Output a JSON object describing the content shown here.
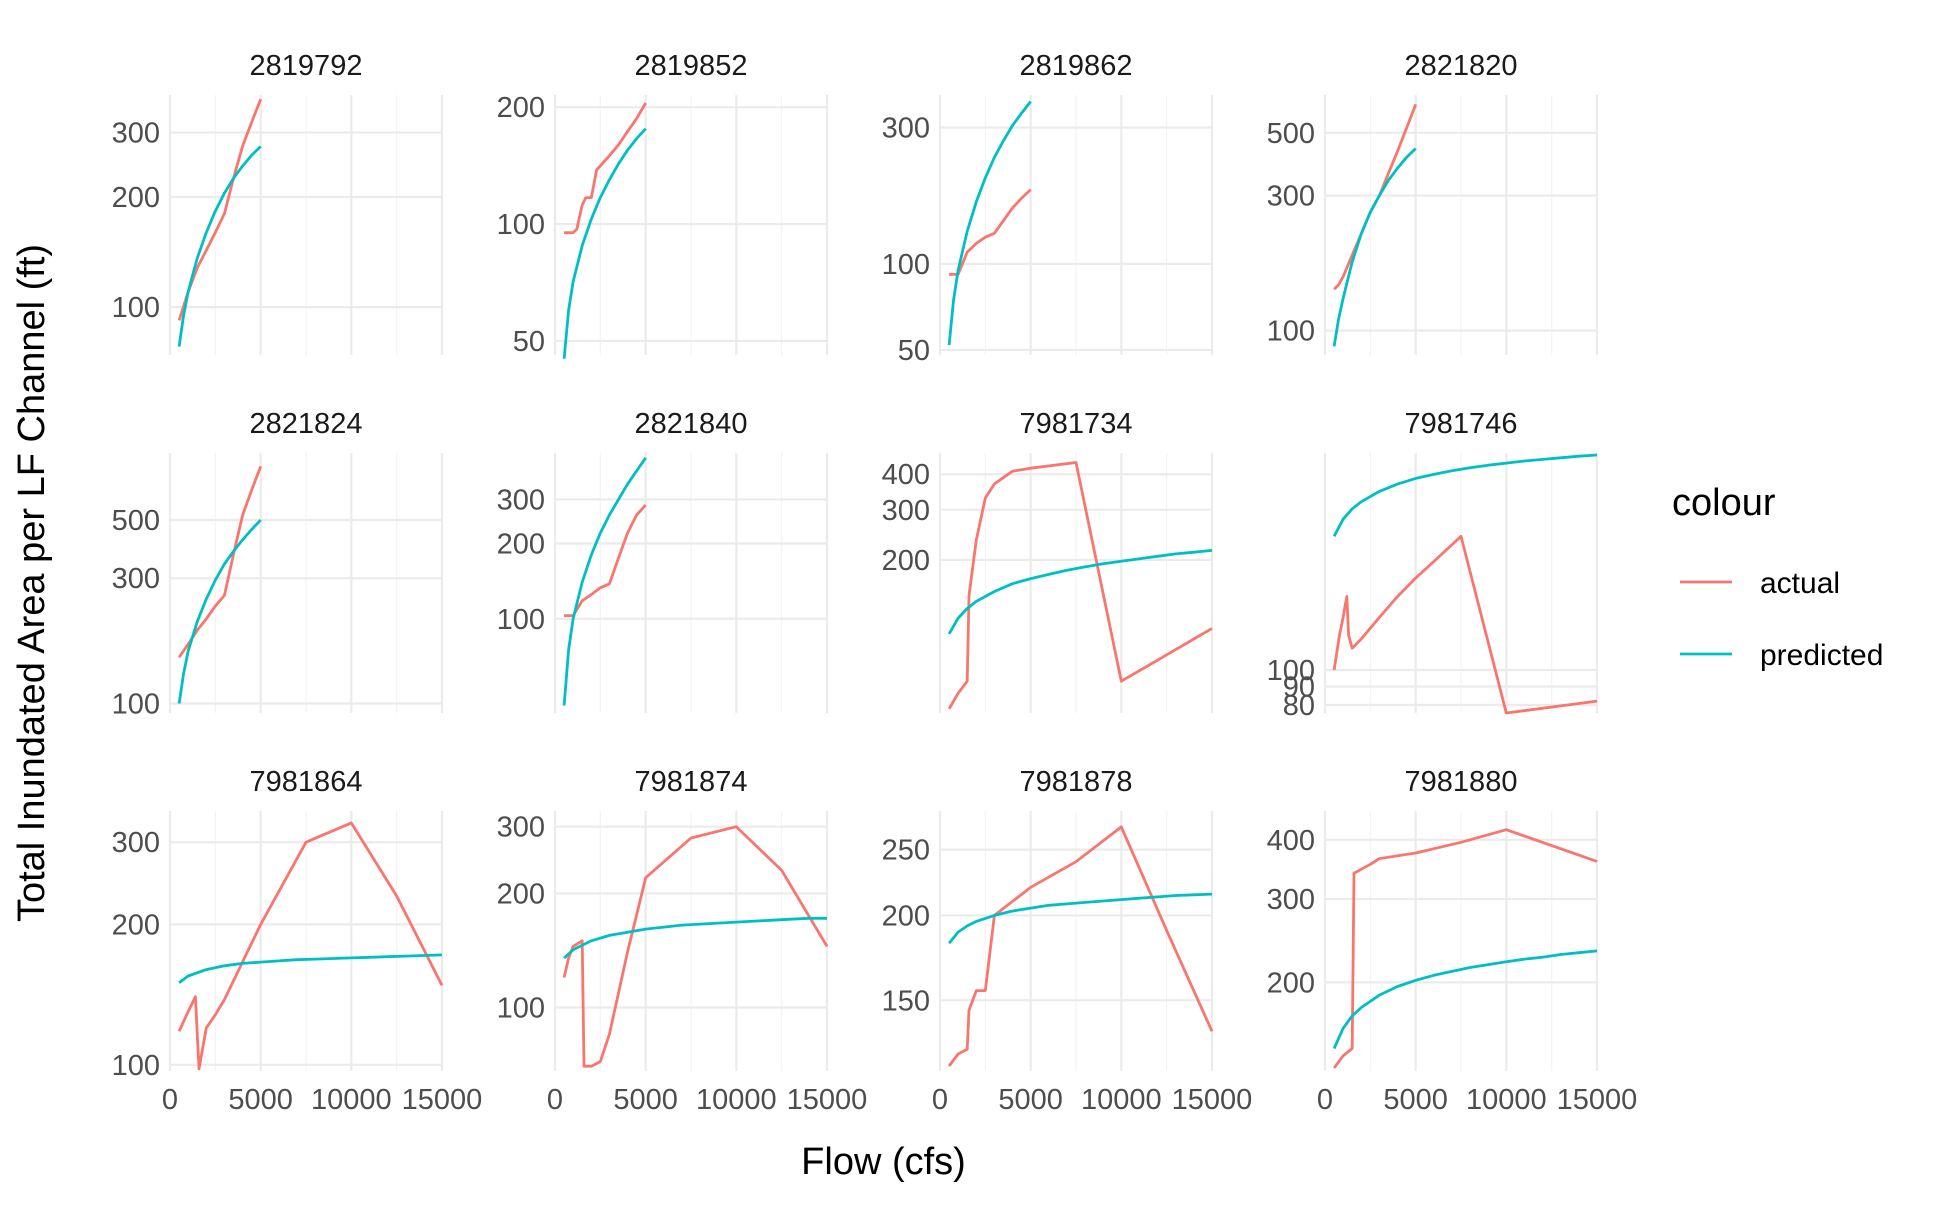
{
  "chart_data": {
    "type": "line",
    "xlabel": "Flow (cfs)",
    "ylabel": "Total Inundated Area per LF Channel (ft)",
    "x_scale": "linear",
    "y_scale": "log",
    "xlim": [
      0,
      15000
    ],
    "x_ticks": [
      0,
      5000,
      10000,
      15000
    ],
    "x_tick_labels": [
      "0",
      "5000",
      "10000",
      "15000"
    ],
    "grid": true,
    "legend": {
      "title": "colour",
      "placement": "right",
      "entries": [
        {
          "label": "actual",
          "color": "#F8766D"
        },
        {
          "label": "predicted",
          "color": "#00BFC4"
        }
      ]
    },
    "panels": [
      {
        "title": "2819792",
        "ylim": [
          74,
          380
        ],
        "y_ticks": [
          100,
          200,
          300
        ],
        "y_tick_labels": [
          "100",
          "200",
          "300"
        ],
        "series": [
          {
            "name": "actual",
            "color": "#F8766D",
            "x": [
              500,
              1000,
              1500,
              2000,
              2500,
              3000,
              3500,
              4000,
              4500,
              5000
            ],
            "y": [
              92,
              110,
              128,
              143,
              160,
              180,
              225,
              275,
              320,
              370
            ]
          },
          {
            "name": "predicted",
            "color": "#00BFC4",
            "x": [
              500,
              750,
              1000,
              1500,
              2000,
              2500,
              3000,
              3500,
              4000,
              4500,
              5000
            ],
            "y": [
              78,
              95,
              110,
              136,
              160,
              183,
              205,
              225,
              243,
              260,
              275
            ]
          }
        ]
      },
      {
        "title": "2819852",
        "ylim": [
          46,
          215
        ],
        "y_ticks": [
          50,
          100,
          200
        ],
        "y_tick_labels": [
          "50",
          "100",
          "200"
        ],
        "series": [
          {
            "name": "actual",
            "color": "#F8766D",
            "x": [
              500,
              1000,
              1200,
              1500,
              1700,
              2000,
              2300,
              3000,
              3500,
              4000,
              4500,
              5000
            ],
            "y": [
              95,
              95,
              97,
              112,
              117,
              117,
              138,
              150,
              160,
              173,
              187,
              205
            ]
          },
          {
            "name": "predicted",
            "color": "#00BFC4",
            "x": [
              500,
              750,
              1000,
              1500,
              2000,
              2500,
              3000,
              3500,
              4000,
              4500,
              5000
            ],
            "y": [
              45,
              60,
              71,
              88,
              103,
              117,
              130,
              143,
              155,
              166,
              176
            ]
          }
        ]
      },
      {
        "title": "2819862",
        "ylim": [
          48,
          390
        ],
        "y_ticks": [
          50,
          100,
          300
        ],
        "y_tick_labels": [
          "50",
          "100",
          "300"
        ],
        "series": [
          {
            "name": "actual",
            "color": "#F8766D",
            "x": [
              500,
              1000,
              1500,
              2000,
              2500,
              3000,
              3500,
              4000,
              4500,
              5000
            ],
            "y": [
              92,
              92,
              110,
              118,
              124,
              128,
              142,
              157,
              170,
              182
            ]
          },
          {
            "name": "predicted",
            "color": "#00BFC4",
            "x": [
              500,
              750,
              1000,
              1500,
              2000,
              2500,
              3000,
              3500,
              4000,
              4500,
              5000
            ],
            "y": [
              52,
              75,
              95,
              130,
              165,
              200,
              236,
              270,
              305,
              337,
              370
            ]
          }
        ]
      },
      {
        "title": "2821820",
        "ylim": [
          82,
          680
        ],
        "y_ticks": [
          100,
          300,
          500
        ],
        "y_tick_labels": [
          "100",
          "300",
          "500"
        ],
        "series": [
          {
            "name": "actual",
            "color": "#F8766D",
            "x": [
              500,
              750,
              1000,
              1500,
              2000,
              2500,
              3000,
              3500,
              4000,
              4500,
              5000
            ],
            "y": [
              140,
              145,
              155,
              185,
              220,
              262,
              300,
              360,
              430,
              520,
              630
            ]
          },
          {
            "name": "predicted",
            "color": "#00BFC4",
            "x": [
              500,
              750,
              1000,
              1500,
              2000,
              2500,
              3000,
              3500,
              4000,
              4500,
              5000
            ],
            "y": [
              88,
              110,
              130,
              175,
              220,
              262,
              300,
              340,
              375,
              410,
              440
            ]
          }
        ]
      },
      {
        "title": "2821824",
        "ylim": [
          92,
          900
        ],
        "y_ticks": [
          100,
          300,
          500
        ],
        "y_tick_labels": [
          "100",
          "300",
          "500"
        ],
        "series": [
          {
            "name": "actual",
            "color": "#F8766D",
            "x": [
              500,
              1000,
              1500,
              2000,
              2500,
              3000,
              3500,
              4000,
              4500,
              5000
            ],
            "y": [
              150,
              168,
              190,
              210,
              235,
              258,
              370,
              520,
              650,
              800
            ]
          },
          {
            "name": "predicted",
            "color": "#00BFC4",
            "x": [
              500,
              750,
              1000,
              1500,
              2000,
              2500,
              3000,
              3500,
              4000,
              4500,
              5000
            ],
            "y": [
              100,
              130,
              158,
              205,
              250,
              295,
              340,
              380,
              420,
              460,
              500
            ]
          }
        ]
      },
      {
        "title": "2821840",
        "ylim": [
          42,
          460
        ],
        "y_ticks": [
          100,
          200,
          300
        ],
        "y_tick_labels": [
          "100",
          "200",
          "300"
        ],
        "series": [
          {
            "name": "actual",
            "color": "#F8766D",
            "x": [
              500,
              1000,
              1500,
              2000,
              2500,
              3000,
              3500,
              4000,
              4500,
              5000
            ],
            "y": [
              103,
              103,
              118,
              125,
              133,
              138,
              175,
              220,
              260,
              285
            ]
          },
          {
            "name": "predicted",
            "color": "#00BFC4",
            "x": [
              500,
              750,
              1000,
              1500,
              2000,
              2500,
              3000,
              3500,
              4000,
              4500,
              5000
            ],
            "y": [
              45,
              75,
              100,
              140,
              180,
              220,
              260,
              300,
              345,
              390,
              440
            ]
          }
        ]
      },
      {
        "title": "7981734",
        "ylim": [
          58,
          475
        ],
        "y_ticks": [
          200,
          300,
          400
        ],
        "y_tick_labels": [
          "200",
          "300",
          "400"
        ],
        "series": [
          {
            "name": "actual",
            "color": "#F8766D",
            "x": [
              500,
              1000,
              1500,
              1600,
              2000,
              2500,
              3000,
              4000,
              5000,
              7500,
              10000,
              15000
            ],
            "y": [
              60,
              68,
              75,
              150,
              235,
              330,
              370,
              410,
              420,
              440,
              75,
              115
            ]
          },
          {
            "name": "predicted",
            "color": "#00BFC4",
            "x": [
              500,
              1000,
              1500,
              2000,
              3000,
              4000,
              5000,
              6000,
              7000,
              8000,
              9000,
              10000,
              11000,
              12000,
              13000,
              14000,
              15000
            ],
            "y": [
              110,
              125,
              135,
              143,
              155,
              165,
              172,
              178,
              184,
              189,
              194,
              198,
              202,
              206,
              210,
              213,
              216
            ]
          }
        ]
      },
      {
        "title": "7981746",
        "ylim": [
          76,
          400
        ],
        "y_ticks": [
          80,
          90,
          100
        ],
        "y_tick_labels": [
          "80",
          "90",
          "100"
        ],
        "series": [
          {
            "name": "actual",
            "color": "#F8766D",
            "x": [
              500,
              800,
              1000,
              1200,
              1300,
              1500,
              2000,
              3000,
              4000,
              5000,
              6000,
              7500,
              10000,
              15000
            ],
            "y": [
              100,
              125,
              140,
              160,
              125,
              115,
              122,
              140,
              160,
              180,
              200,
              235,
              76,
              82
            ]
          },
          {
            "name": "predicted",
            "color": "#00BFC4",
            "x": [
              500,
              1000,
              1500,
              2000,
              3000,
              4000,
              5000,
              6000,
              7000,
              8000,
              9000,
              10000,
              11000,
              12000,
              13000,
              14000,
              15000
            ],
            "y": [
              235,
              262,
              280,
              293,
              313,
              328,
              340,
              349,
              357,
              364,
              370,
              375,
              380,
              384,
              388,
              392,
              395
            ]
          }
        ]
      },
      {
        "title": "7981864",
        "ylim": [
          97,
          350
        ],
        "y_ticks": [
          100,
          200,
          300
        ],
        "y_tick_labels": [
          "100",
          "200",
          "300"
        ],
        "series": [
          {
            "name": "actual",
            "color": "#F8766D",
            "x": [
              500,
              1000,
              1400,
              1600,
              2000,
              2500,
              3000,
              5000,
              7500,
              10000,
              12500,
              15000
            ],
            "y": [
              118,
              130,
              140,
              98,
              120,
              128,
              138,
              200,
              300,
              330,
              230,
              148
            ]
          },
          {
            "name": "predicted",
            "color": "#00BFC4",
            "x": [
              500,
              1000,
              2000,
              3000,
              4000,
              5000,
              6000,
              7000,
              8000,
              9000,
              10000,
              11000,
              12000,
              13000,
              14000,
              15000
            ],
            "y": [
              150,
              155,
              160,
              163,
              165,
              166,
              167,
              168,
              168.5,
              169,
              169.5,
              170,
              170.5,
              171,
              171.5,
              172
            ]
          }
        ]
      },
      {
        "title": "7981874",
        "ylim": [
          68,
          330
        ],
        "y_ticks": [
          100,
          200,
          300
        ],
        "y_tick_labels": [
          "100",
          "200",
          "300"
        ],
        "series": [
          {
            "name": "actual",
            "color": "#F8766D",
            "x": [
              500,
              750,
              1000,
              1500,
              1600,
              2000,
              2500,
              3000,
              4000,
              5000,
              7500,
              10000,
              12500,
              15000
            ],
            "y": [
              120,
              135,
              145,
              150,
              70,
              70,
              72,
              85,
              140,
              220,
              280,
              300,
              230,
              145
            ]
          },
          {
            "name": "predicted",
            "color": "#00BFC4",
            "x": [
              500,
              1000,
              2000,
              3000,
              4000,
              5000,
              6000,
              7000,
              8000,
              9000,
              10000,
              11000,
              12000,
              13000,
              14000,
              15000
            ],
            "y": [
              135,
              142,
              150,
              155,
              158,
              161,
              163,
              165,
              166,
              167,
              168,
              169,
              170,
              171,
              172,
              172
            ]
          }
        ]
      },
      {
        "title": "7981878",
        "ylim": [
          118,
          285
        ],
        "y_ticks": [
          150,
          200,
          250
        ],
        "y_tick_labels": [
          "150",
          "200",
          "250"
        ],
        "series": [
          {
            "name": "actual",
            "color": "#F8766D",
            "x": [
              500,
              1000,
              1500,
              1600,
              2000,
              2500,
              3000,
              5000,
              7500,
              10000,
              12500,
              15000
            ],
            "y": [
              120,
              125,
              127,
              145,
              155,
              155,
              200,
              220,
              240,
              270,
              190,
              135
            ]
          },
          {
            "name": "predicted",
            "color": "#00BFC4",
            "x": [
              500,
              1000,
              1500,
              2000,
              3000,
              4000,
              5000,
              6000,
              7000,
              8000,
              9000,
              10000,
              11000,
              12000,
              13000,
              14000,
              15000
            ],
            "y": [
              182,
              189,
              193,
              196,
              200,
              203,
              205,
              207,
              208,
              209,
              210,
              211,
              212,
              213,
              214,
              214.5,
              215
            ]
          }
        ]
      },
      {
        "title": "7981880",
        "ylim": [
          130,
          460
        ],
        "y_ticks": [
          200,
          300,
          400
        ],
        "y_tick_labels": [
          "200",
          "300",
          "400"
        ],
        "series": [
          {
            "name": "actual",
            "color": "#F8766D",
            "x": [
              500,
              1000,
              1500,
              1600,
              2500,
              3000,
              5000,
              7500,
              10000,
              15000
            ],
            "y": [
              132,
              140,
              145,
              340,
              355,
              365,
              375,
              395,
              420,
              360
            ]
          },
          {
            "name": "predicted",
            "color": "#00BFC4",
            "x": [
              500,
              1000,
              1500,
              2000,
              3000,
              4000,
              5000,
              6000,
              7000,
              8000,
              9000,
              10000,
              11000,
              12000,
              13000,
              14000,
              15000
            ],
            "y": [
              145,
              160,
              170,
              177,
              188,
              196,
              202,
              207,
              211,
              215,
              218,
              221,
              224,
              226,
              229,
              231,
              233
            ]
          }
        ]
      }
    ]
  }
}
